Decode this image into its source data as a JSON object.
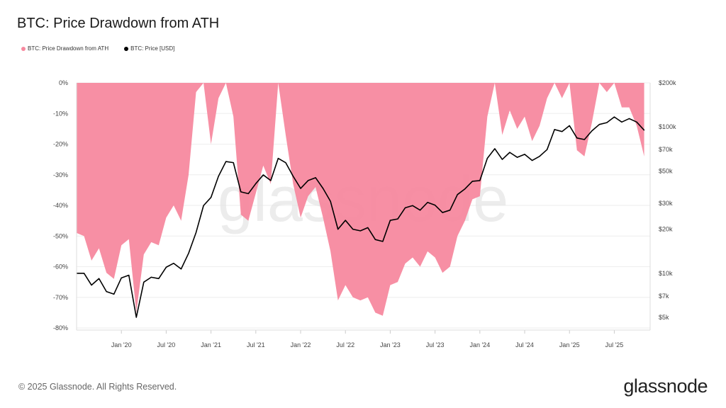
{
  "chart_data": {
    "type": "area",
    "title": "BTC: Price Drawdown from ATH",
    "legend": [
      {
        "name": "BTC: Price Drawdown from ATH",
        "color": "#f7899f"
      },
      {
        "name": "BTC: Price [USD]",
        "color": "#000000"
      }
    ],
    "legend_position": "top-left",
    "x_ticks": [
      "Jan '20",
      "Jul '20",
      "Jan '21",
      "Jul '21",
      "Jan '22",
      "Jul '22",
      "Jan '23",
      "Jul '23",
      "Jan '24",
      "Jul '24",
      "Jan '25",
      "Jul '25"
    ],
    "x_tick_values": [
      2020.0,
      2020.5,
      2021.0,
      2021.5,
      2022.0,
      2022.5,
      2023.0,
      2023.5,
      2024.0,
      2024.5,
      2025.0,
      2025.5
    ],
    "xlim": [
      2019.5,
      2025.9
    ],
    "y_left": {
      "ticks": [
        "0%",
        "-10%",
        "-20%",
        "-30%",
        "-40%",
        "-50%",
        "-60%",
        "-70%",
        "-80%"
      ],
      "tick_values": [
        0,
        -10,
        -20,
        -30,
        -40,
        -50,
        -60,
        -70,
        -80
      ],
      "lim": [
        -80,
        0
      ]
    },
    "y_right": {
      "scale": "log",
      "ticks": [
        "$200k",
        "$100k",
        "$70k",
        "$50k",
        "$30k",
        "$20k",
        "$10k",
        "$7k",
        "$5k"
      ],
      "tick_values": [
        200000,
        100000,
        70000,
        50000,
        30000,
        20000,
        10000,
        7000,
        5000
      ],
      "lim": [
        5000,
        200000
      ]
    },
    "grid": true,
    "watermark": "glassnode",
    "x": [
      "2019-07",
      "2019-08",
      "2019-09",
      "2019-10",
      "2019-11",
      "2019-12",
      "2020-01",
      "2020-02",
      "2020-03",
      "2020-04",
      "2020-05",
      "2020-06",
      "2020-07",
      "2020-08",
      "2020-09",
      "2020-10",
      "2020-11",
      "2020-12",
      "2021-01",
      "2021-02",
      "2021-03",
      "2021-04",
      "2021-05",
      "2021-06",
      "2021-07",
      "2021-08",
      "2021-09",
      "2021-10",
      "2021-11",
      "2021-12",
      "2022-01",
      "2022-02",
      "2022-03",
      "2022-04",
      "2022-05",
      "2022-06",
      "2022-07",
      "2022-08",
      "2022-09",
      "2022-10",
      "2022-11",
      "2022-12",
      "2023-01",
      "2023-02",
      "2023-03",
      "2023-04",
      "2023-05",
      "2023-06",
      "2023-07",
      "2023-08",
      "2023-09",
      "2023-10",
      "2023-11",
      "2023-12",
      "2024-01",
      "2024-02",
      "2024-03",
      "2024-04",
      "2024-05",
      "2024-06",
      "2024-07",
      "2024-08",
      "2024-09",
      "2024-10",
      "2024-11",
      "2024-12",
      "2025-01",
      "2025-02",
      "2025-03",
      "2025-04",
      "2025-05",
      "2025-06",
      "2025-07",
      "2025-08",
      "2025-09",
      "2025-10",
      "2025-11"
    ],
    "series": [
      {
        "name": "BTC: Price Drawdown from ATH",
        "axis": "left",
        "values": [
          -49,
          -50,
          -58,
          -54,
          -62,
          -64,
          -53,
          -51,
          -75,
          -56,
          -52,
          -53,
          -44,
          -40,
          -45,
          -30,
          -3,
          0,
          -20,
          -5,
          0,
          -11,
          -43,
          -45,
          -36,
          -27,
          -33,
          0,
          -17,
          -33,
          -44,
          -37,
          -34,
          -44,
          -55,
          -71,
          -66,
          -70,
          -71,
          -70,
          -75,
          -76,
          -66,
          -65,
          -59,
          -57,
          -60,
          -55,
          -57,
          -62,
          -60,
          -50,
          -45,
          -38,
          -37,
          -11,
          0,
          -17,
          -9,
          -15,
          -11,
          -19,
          -14,
          -5,
          0,
          -5,
          0,
          -22,
          -24,
          -13,
          0,
          -3,
          0,
          -8,
          -8,
          -14,
          -24
        ]
      },
      {
        "name": "BTC: Price [USD]",
        "axis": "right",
        "values": [
          10000,
          10000,
          8300,
          9200,
          7500,
          7200,
          9300,
          9700,
          5000,
          8700,
          9400,
          9200,
          11000,
          11700,
          10700,
          13700,
          19000,
          29000,
          33000,
          46000,
          58000,
          57000,
          36000,
          35000,
          41000,
          47000,
          43000,
          61000,
          57000,
          46000,
          38000,
          43000,
          45000,
          38000,
          31000,
          20000,
          23000,
          20000,
          19500,
          20500,
          17000,
          16500,
          23000,
          23500,
          28000,
          29000,
          27000,
          30500,
          29200,
          26000,
          27000,
          34500,
          37700,
          42500,
          43000,
          61000,
          71000,
          60000,
          67000,
          62000,
          65000,
          59000,
          63000,
          70000,
          96000,
          93000,
          102000,
          84000,
          82000,
          94000,
          104000,
          107000,
          117000,
          108000,
          114000,
          108000,
          95000
        ]
      }
    ]
  },
  "footer": {
    "copyright": "© 2025 Glassnode. All Rights Reserved.",
    "brand": "glassnode"
  }
}
